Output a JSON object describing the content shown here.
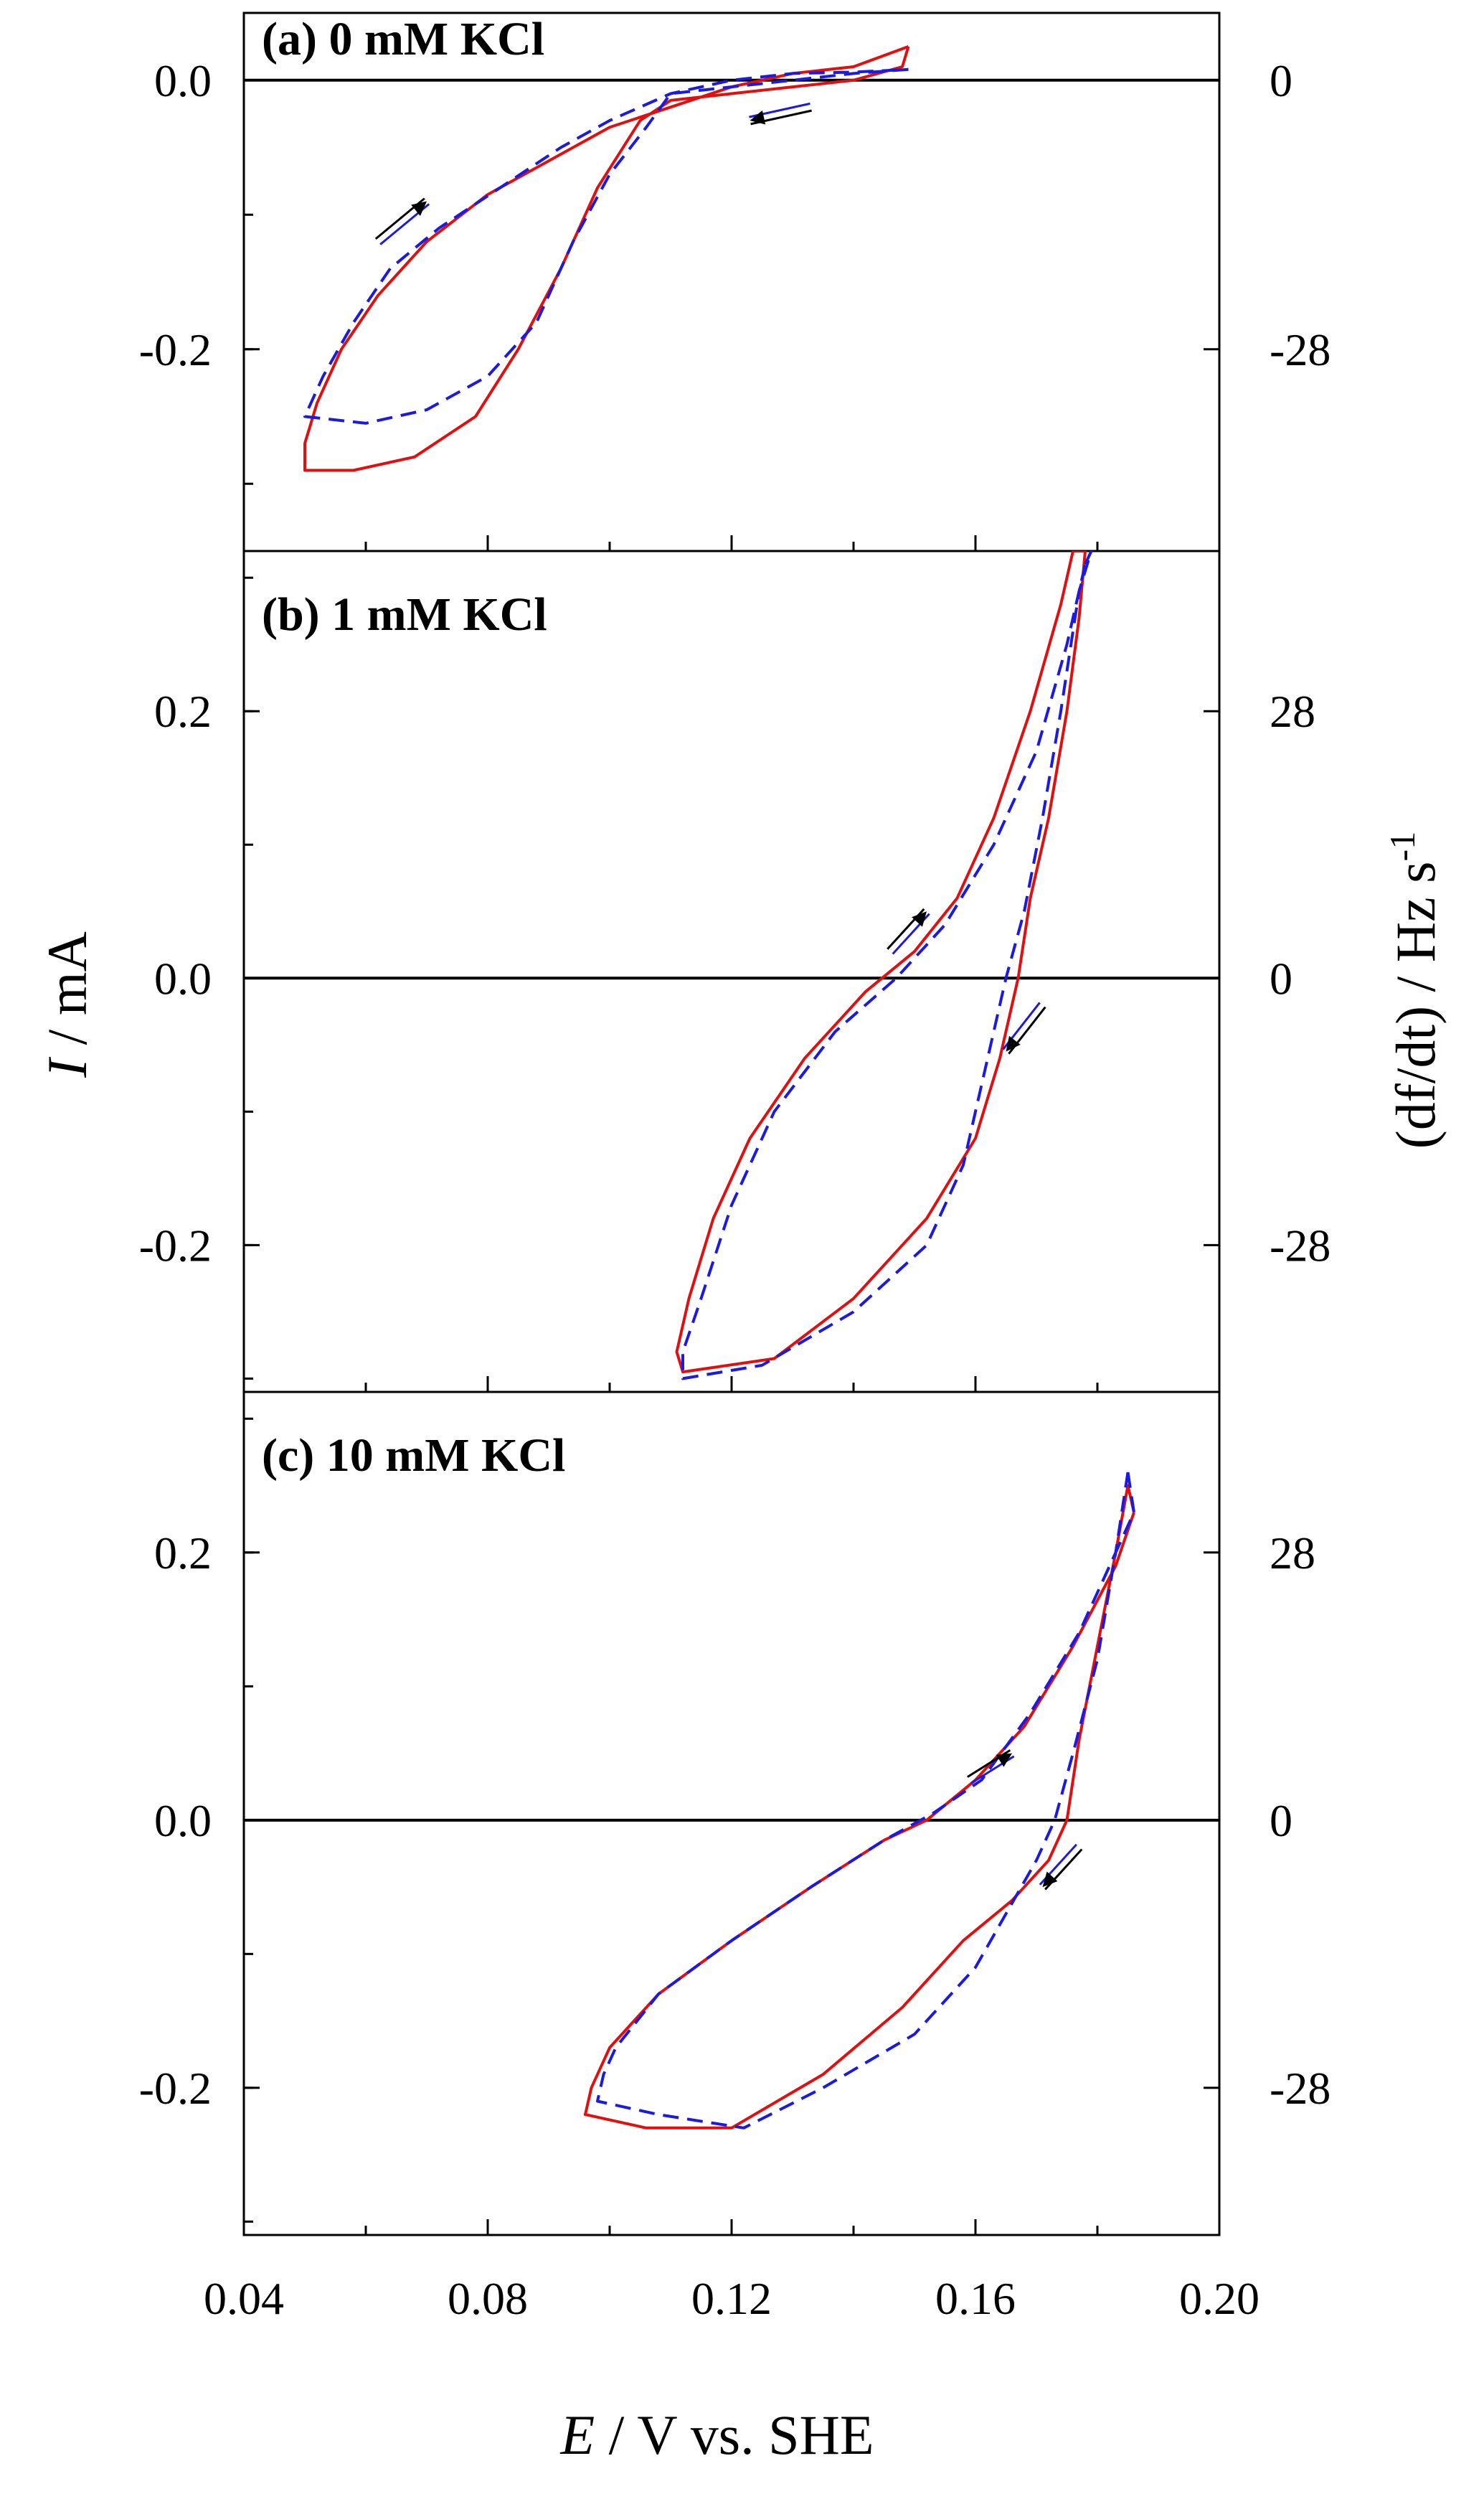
{
  "chart_data": {
    "type": "line",
    "x_axis": {
      "label_symbol": "E",
      "label_rest": " / V vs. SHE",
      "range": [
        0.04,
        0.2
      ],
      "ticks": [
        0.04,
        0.08,
        0.12,
        0.16,
        0.2
      ],
      "tick_labels": [
        "0.04",
        "0.08",
        "0.12",
        "0.16",
        "0.20"
      ]
    },
    "y_axis_left": {
      "label_symbol": "I",
      "label_rest": " / mA"
    },
    "y_axis_right": {
      "label_main": "(df/dt) / Hz s",
      "label_sup": "-1"
    },
    "series": [
      {
        "name": "current",
        "color": "#e01010",
        "style": "solid"
      },
      {
        "name": "df/dt",
        "color": "#1a1ae0",
        "style": "dashed"
      }
    ],
    "panels": [
      {
        "label": "(a) 0 mM KCl",
        "ylim": [
          -0.35,
          0.05
        ],
        "left_ticks": [
          0.0,
          -0.2
        ],
        "left_tick_labels": [
          "0.0",
          "-0.2"
        ],
        "right_ticks": [
          0,
          -28
        ],
        "right_tick_labels": [
          "0",
          "-28"
        ],
        "red": [
          [
            0.149,
            0.025
          ],
          [
            0.148,
            0.01
          ],
          [
            0.14,
            0.0
          ],
          [
            0.13,
            -0.005
          ],
          [
            0.12,
            -0.01
          ],
          [
            0.11,
            -0.015
          ],
          [
            0.105,
            -0.03
          ],
          [
            0.098,
            -0.08
          ],
          [
            0.092,
            -0.14
          ],
          [
            0.085,
            -0.2
          ],
          [
            0.078,
            -0.25
          ],
          [
            0.068,
            -0.28
          ],
          [
            0.058,
            -0.29
          ],
          [
            0.05,
            -0.29
          ],
          [
            0.05,
            -0.27
          ],
          [
            0.052,
            -0.24
          ],
          [
            0.056,
            -0.2
          ],
          [
            0.062,
            -0.16
          ],
          [
            0.07,
            -0.12
          ],
          [
            0.08,
            -0.085
          ],
          [
            0.09,
            -0.06
          ],
          [
            0.1,
            -0.035
          ],
          [
            0.11,
            -0.02
          ],
          [
            0.12,
            -0.005
          ],
          [
            0.13,
            0.005
          ],
          [
            0.14,
            0.01
          ],
          [
            0.149,
            0.025
          ]
        ],
        "blue": [
          [
            0.149,
            0.008
          ],
          [
            0.14,
            0.005
          ],
          [
            0.13,
            0.0
          ],
          [
            0.12,
            -0.005
          ],
          [
            0.11,
            -0.01
          ],
          [
            0.106,
            -0.035
          ],
          [
            0.1,
            -0.07
          ],
          [
            0.094,
            -0.12
          ],
          [
            0.088,
            -0.18
          ],
          [
            0.08,
            -0.22
          ],
          [
            0.07,
            -0.245
          ],
          [
            0.06,
            -0.255
          ],
          [
            0.05,
            -0.25
          ],
          [
            0.053,
            -0.22
          ],
          [
            0.058,
            -0.18
          ],
          [
            0.064,
            -0.14
          ],
          [
            0.072,
            -0.11
          ],
          [
            0.082,
            -0.08
          ],
          [
            0.092,
            -0.05
          ],
          [
            0.1,
            -0.03
          ],
          [
            0.11,
            -0.01
          ],
          [
            0.12,
            0.0
          ],
          [
            0.13,
            0.005
          ],
          [
            0.14,
            0.006
          ],
          [
            0.149,
            0.008
          ]
        ],
        "arrows": [
          {
            "x1": 0.062,
            "y1": -0.12,
            "x2": 0.07,
            "y2": -0.09
          },
          {
            "x1": 0.133,
            "y1": -0.02,
            "x2": 0.123,
            "y2": -0.03
          }
        ]
      },
      {
        "label": "(b) 1 mM KCl",
        "ylim": [
          -0.31,
          0.32
        ],
        "left_ticks": [
          0.2,
          0.0,
          -0.2
        ],
        "left_tick_labels": [
          "0.2",
          "0.0",
          "-0.2"
        ],
        "right_ticks": [
          28,
          0,
          -28
        ],
        "right_tick_labels": [
          "28",
          "0",
          "-28"
        ],
        "red": [
          [
            0.176,
            0.32
          ],
          [
            0.178,
            0.32
          ],
          [
            0.177,
            0.27
          ],
          [
            0.175,
            0.2
          ],
          [
            0.172,
            0.12
          ],
          [
            0.169,
            0.06
          ],
          [
            0.167,
            0.0
          ],
          [
            0.164,
            -0.06
          ],
          [
            0.16,
            -0.12
          ],
          [
            0.152,
            -0.18
          ],
          [
            0.14,
            -0.24
          ],
          [
            0.127,
            -0.285
          ],
          [
            0.112,
            -0.295
          ],
          [
            0.111,
            -0.28
          ],
          [
            0.113,
            -0.24
          ],
          [
            0.117,
            -0.18
          ],
          [
            0.123,
            -0.12
          ],
          [
            0.132,
            -0.06
          ],
          [
            0.142,
            -0.01
          ],
          [
            0.15,
            0.02
          ],
          [
            0.157,
            0.06
          ],
          [
            0.163,
            0.12
          ],
          [
            0.169,
            0.2
          ],
          [
            0.174,
            0.28
          ],
          [
            0.176,
            0.32
          ]
        ],
        "blue": [
          [
            0.178,
            0.31
          ],
          [
            0.179,
            0.32
          ],
          [
            0.177,
            0.29
          ],
          [
            0.174,
            0.2
          ],
          [
            0.171,
            0.12
          ],
          [
            0.168,
            0.05
          ],
          [
            0.165,
            0.0
          ],
          [
            0.162,
            -0.06
          ],
          [
            0.158,
            -0.14
          ],
          [
            0.152,
            -0.2
          ],
          [
            0.14,
            -0.25
          ],
          [
            0.125,
            -0.29
          ],
          [
            0.112,
            -0.3
          ],
          [
            0.112,
            -0.28
          ],
          [
            0.115,
            -0.24
          ],
          [
            0.12,
            -0.17
          ],
          [
            0.127,
            -0.1
          ],
          [
            0.137,
            -0.04
          ],
          [
            0.147,
            0.0
          ],
          [
            0.155,
            0.04
          ],
          [
            0.163,
            0.1
          ],
          [
            0.17,
            0.17
          ],
          [
            0.175,
            0.25
          ],
          [
            0.178,
            0.31
          ]
        ],
        "arrows": [
          {
            "x1": 0.146,
            "y1": 0.02,
            "x2": 0.152,
            "y2": 0.05
          },
          {
            "x1": 0.171,
            "y1": -0.02,
            "x2": 0.165,
            "y2": -0.055
          }
        ]
      },
      {
        "label": "(c) 10 mM KCl",
        "ylim": [
          -0.31,
          0.32
        ],
        "left_ticks": [
          0.2,
          0.0,
          -0.2
        ],
        "left_tick_labels": [
          "0.2",
          "0.0",
          "-0.2"
        ],
        "right_ticks": [
          28,
          0,
          -28
        ],
        "right_tick_labels": [
          "28",
          "0",
          "-28"
        ],
        "red": [
          [
            0.186,
            0.23
          ],
          [
            0.185,
            0.25
          ],
          [
            0.183,
            0.2
          ],
          [
            0.18,
            0.13
          ],
          [
            0.177,
            0.06
          ],
          [
            0.175,
            0.0
          ],
          [
            0.172,
            -0.03
          ],
          [
            0.166,
            -0.06
          ],
          [
            0.158,
            -0.09
          ],
          [
            0.148,
            -0.14
          ],
          [
            0.135,
            -0.19
          ],
          [
            0.12,
            -0.23
          ],
          [
            0.106,
            -0.23
          ],
          [
            0.096,
            -0.22
          ],
          [
            0.097,
            -0.2
          ],
          [
            0.1,
            -0.17
          ],
          [
            0.108,
            -0.13
          ],
          [
            0.12,
            -0.09
          ],
          [
            0.133,
            -0.05
          ],
          [
            0.145,
            -0.015
          ],
          [
            0.152,
            0.0
          ],
          [
            0.16,
            0.03
          ],
          [
            0.168,
            0.07
          ],
          [
            0.176,
            0.13
          ],
          [
            0.183,
            0.19
          ],
          [
            0.186,
            0.23
          ]
        ],
        "blue": [
          [
            0.185,
            0.26
          ],
          [
            0.186,
            0.23
          ],
          [
            0.183,
            0.2
          ],
          [
            0.18,
            0.12
          ],
          [
            0.176,
            0.05
          ],
          [
            0.173,
            0.0
          ],
          [
            0.17,
            -0.03
          ],
          [
            0.165,
            -0.07
          ],
          [
            0.16,
            -0.11
          ],
          [
            0.15,
            -0.16
          ],
          [
            0.135,
            -0.2
          ],
          [
            0.122,
            -0.23
          ],
          [
            0.108,
            -0.22
          ],
          [
            0.098,
            -0.21
          ],
          [
            0.099,
            -0.19
          ],
          [
            0.101,
            -0.17
          ],
          [
            0.108,
            -0.13
          ],
          [
            0.12,
            -0.09
          ],
          [
            0.133,
            -0.05
          ],
          [
            0.145,
            -0.015
          ],
          [
            0.153,
            0.005
          ],
          [
            0.161,
            0.03
          ],
          [
            0.169,
            0.08
          ],
          [
            0.177,
            0.14
          ],
          [
            0.183,
            0.2
          ],
          [
            0.185,
            0.26
          ]
        ],
        "arrows": [
          {
            "x1": 0.159,
            "y1": 0.03,
            "x2": 0.166,
            "y2": 0.05
          },
          {
            "x1": 0.177,
            "y1": -0.02,
            "x2": 0.171,
            "y2": -0.05
          }
        ]
      }
    ]
  }
}
